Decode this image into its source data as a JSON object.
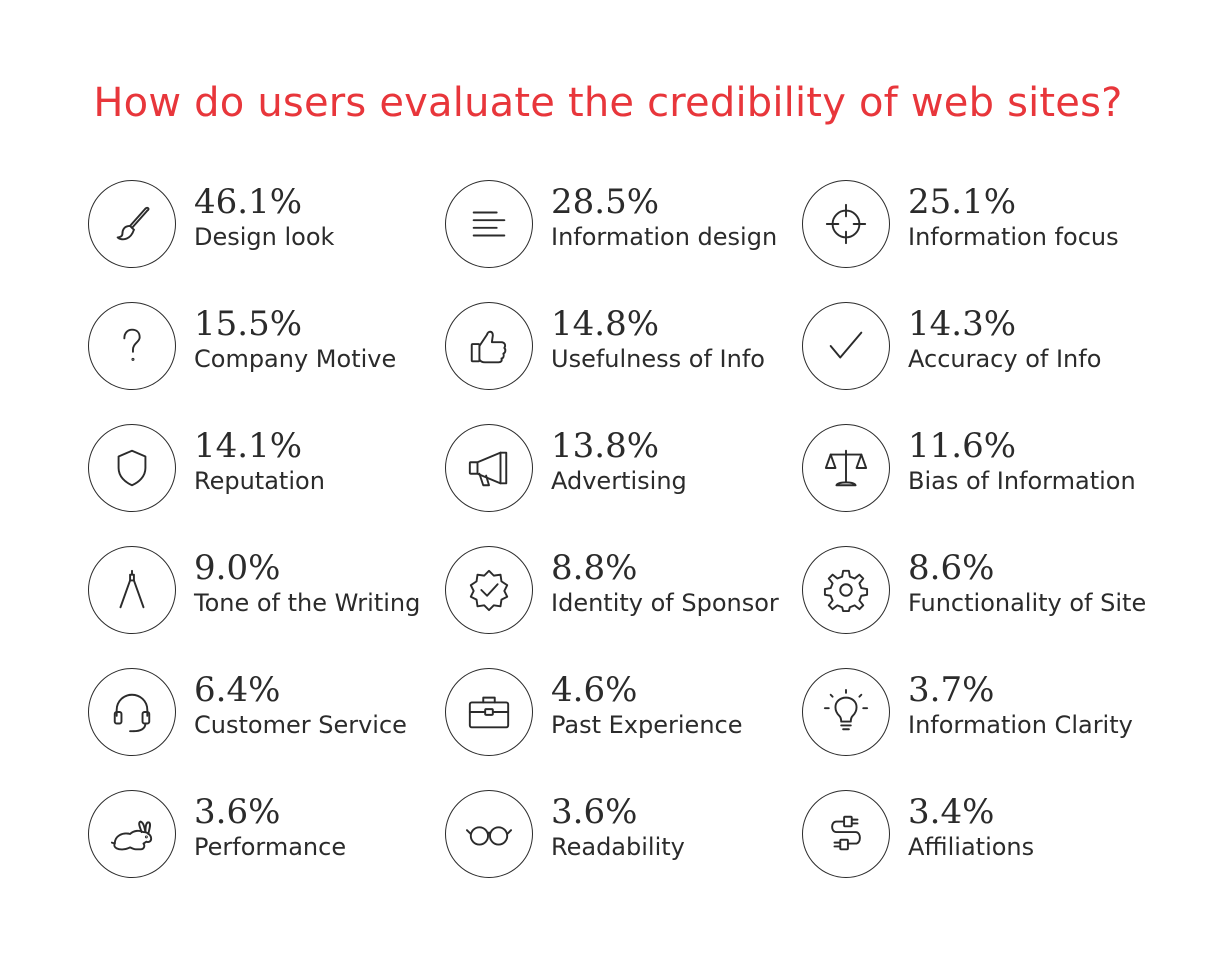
{
  "title": "How do users evaluate the credibility of web sites?",
  "colors": {
    "title": "#e8363b",
    "text": "#2b2b2b",
    "background": "#ffffff"
  },
  "items": [
    {
      "percent": "46.1%",
      "label": "Design look",
      "icon": "paintbrush-icon"
    },
    {
      "percent": "28.5%",
      "label": "Information design",
      "icon": "text-lines-icon"
    },
    {
      "percent": "25.1%",
      "label": "Information focus",
      "icon": "crosshair-icon"
    },
    {
      "percent": "15.5%",
      "label": "Company Motive",
      "icon": "question-mark-icon"
    },
    {
      "percent": "14.8%",
      "label": "Usefulness of Info",
      "icon": "thumbs-up-icon"
    },
    {
      "percent": "14.3%",
      "label": "Accuracy of Info",
      "icon": "checkmark-icon"
    },
    {
      "percent": "14.1%",
      "label": "Reputation",
      "icon": "shield-icon"
    },
    {
      "percent": "13.8%",
      "label": "Advertising",
      "icon": "megaphone-icon"
    },
    {
      "percent": "11.6%",
      "label": "Bias of Information",
      "icon": "scales-icon"
    },
    {
      "percent": "9.0%",
      "label": "Tone of the Writing",
      "icon": "compass-icon"
    },
    {
      "percent": "8.8%",
      "label": "Identity of Sponsor",
      "icon": "verified-badge-icon"
    },
    {
      "percent": "8.6%",
      "label": "Functionality of Site",
      "icon": "gear-icon"
    },
    {
      "percent": "6.4%",
      "label": "Customer Service",
      "icon": "headset-icon"
    },
    {
      "percent": "4.6%",
      "label": "Past Experience",
      "icon": "briefcase-icon"
    },
    {
      "percent": "3.7%",
      "label": "Information Clarity",
      "icon": "lightbulb-icon"
    },
    {
      "percent": "3.6%",
      "label": "Performance",
      "icon": "rabbit-icon"
    },
    {
      "percent": "3.6%",
      "label": "Readability",
      "icon": "glasses-icon"
    },
    {
      "percent": "3.4%",
      "label": "Affiliations",
      "icon": "plug-cable-icon"
    }
  ]
}
